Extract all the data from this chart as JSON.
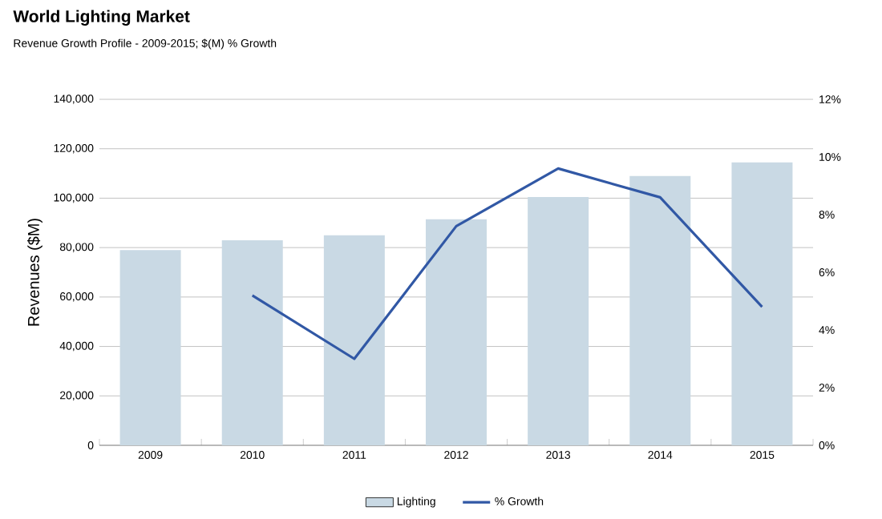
{
  "chart_data": {
    "type": "bar",
    "title": "World Lighting Market",
    "subtitle": "Revenue Growth Profile - 2009-2015;  $(M) % Growth",
    "ylabel": "Revenues ($M)",
    "categories": [
      "2009",
      "2010",
      "2011",
      "2012",
      "2013",
      "2014",
      "2015"
    ],
    "series": [
      {
        "name": "Lighting",
        "color": "#c9d9e4",
        "values": [
          79000,
          83000,
          85000,
          91500,
          100500,
          109000,
          114500
        ]
      },
      {
        "name": "% Growth",
        "type": "line",
        "axis": "y2",
        "color": "#3158a5",
        "values": [
          null,
          5.2,
          3.0,
          7.6,
          9.6,
          8.6,
          4.8
        ]
      }
    ],
    "ylim": [
      0,
      140000
    ],
    "yticks": [
      {
        "value": 0,
        "label": "0"
      },
      {
        "value": 20000,
        "label": "20,000"
      },
      {
        "value": 40000,
        "label": "40,000"
      },
      {
        "value": 60000,
        "label": "60,000"
      },
      {
        "value": 80000,
        "label": "80,000"
      },
      {
        "value": 100000,
        "label": "100,000"
      },
      {
        "value": 120000,
        "label": "120,000"
      },
      {
        "value": 140000,
        "label": "140,000"
      }
    ],
    "y2lim": [
      0,
      12
    ],
    "y2ticks": [
      {
        "value": 0,
        "label": "0%"
      },
      {
        "value": 2,
        "label": "2%"
      },
      {
        "value": 4,
        "label": "4%"
      },
      {
        "value": 6,
        "label": "6%"
      },
      {
        "value": 8,
        "label": "8%"
      },
      {
        "value": 10,
        "label": "10%"
      },
      {
        "value": 12,
        "label": "12%"
      }
    ],
    "grid": "y",
    "legend": "bottom",
    "marker": "none",
    "line_style": "solid"
  }
}
